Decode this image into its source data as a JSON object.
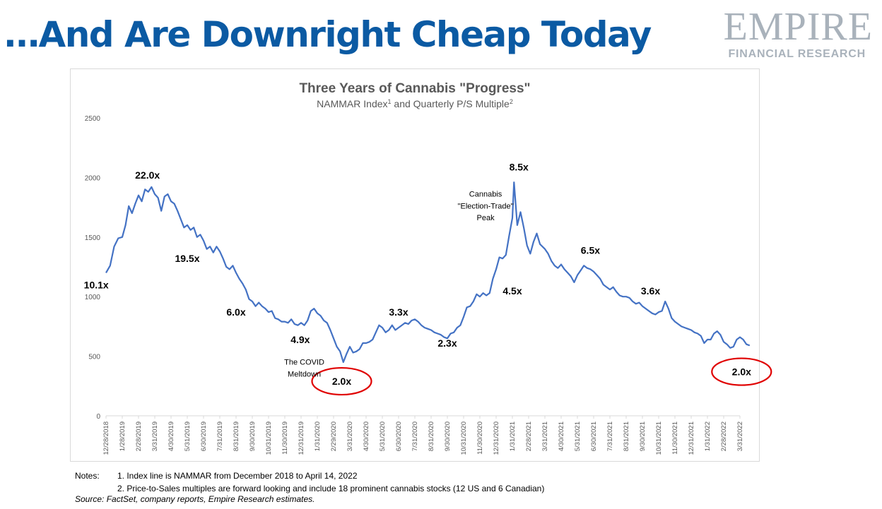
{
  "slide": {
    "title": "…And Are Downright Cheap Today"
  },
  "logo": {
    "line1": "EMPIRE",
    "line2": "FINANCIAL RESEARCH"
  },
  "chart_data": {
    "type": "line",
    "title": "Three Years of Cannabis \"Progress\"",
    "subtitle_parts": [
      "NAMMAR Index",
      "1",
      " and Quarterly P/S Multiple",
      "2"
    ],
    "ylim": [
      0,
      2500
    ],
    "yticks": [
      0,
      500,
      1000,
      1500,
      2000,
      2500
    ],
    "x_tick_labels": [
      "12/28/2018",
      "1/28/2019",
      "2/28/2019",
      "3/31/2019",
      "4/30/2019",
      "5/31/2019",
      "6/30/2019",
      "7/31/2019",
      "8/31/2019",
      "9/30/2019",
      "10/31/2019",
      "11/30/2019",
      "12/31/2019",
      "1/31/2020",
      "2/29/2020",
      "3/31/2020",
      "4/30/2020",
      "5/31/2020",
      "6/30/2020",
      "7/31/2020",
      "8/31/2020",
      "9/30/2020",
      "10/31/2020",
      "11/30/2020",
      "12/31/2020",
      "1/31/2021",
      "2/28/2021",
      "3/31/2021",
      "4/30/2021",
      "5/31/2021",
      "6/30/2021",
      "7/31/2021",
      "8/31/2021",
      "9/30/2021",
      "10/31/2021",
      "11/30/2021",
      "12/31/2021",
      "1/31/2022",
      "2/28/2022",
      "3/31/2022"
    ],
    "series": [
      {
        "color": "#4472c4",
        "points": [
          [
            0,
            1200
          ],
          [
            0.25,
            1260
          ],
          [
            0.5,
            1420
          ],
          [
            0.75,
            1490
          ],
          [
            1,
            1500
          ],
          [
            1.2,
            1600
          ],
          [
            1.4,
            1760
          ],
          [
            1.6,
            1700
          ],
          [
            1.8,
            1780
          ],
          [
            2.0,
            1850
          ],
          [
            2.2,
            1800
          ],
          [
            2.4,
            1900
          ],
          [
            2.6,
            1880
          ],
          [
            2.8,
            1920
          ],
          [
            3.0,
            1860
          ],
          [
            3.2,
            1830
          ],
          [
            3.4,
            1720
          ],
          [
            3.6,
            1840
          ],
          [
            3.8,
            1860
          ],
          [
            4.0,
            1800
          ],
          [
            4.2,
            1780
          ],
          [
            4.4,
            1720
          ],
          [
            4.6,
            1650
          ],
          [
            4.8,
            1580
          ],
          [
            5.0,
            1600
          ],
          [
            5.2,
            1560
          ],
          [
            5.4,
            1580
          ],
          [
            5.6,
            1500
          ],
          [
            5.8,
            1520
          ],
          [
            6.0,
            1470
          ],
          [
            6.2,
            1400
          ],
          [
            6.4,
            1420
          ],
          [
            6.6,
            1370
          ],
          [
            6.8,
            1420
          ],
          [
            7.0,
            1380
          ],
          [
            7.2,
            1320
          ],
          [
            7.4,
            1250
          ],
          [
            7.6,
            1230
          ],
          [
            7.8,
            1260
          ],
          [
            8.0,
            1200
          ],
          [
            8.2,
            1150
          ],
          [
            8.4,
            1110
          ],
          [
            8.6,
            1060
          ],
          [
            8.8,
            980
          ],
          [
            9.0,
            960
          ],
          [
            9.2,
            920
          ],
          [
            9.4,
            950
          ],
          [
            9.6,
            920
          ],
          [
            9.8,
            900
          ],
          [
            10.0,
            870
          ],
          [
            10.2,
            880
          ],
          [
            10.4,
            820
          ],
          [
            10.6,
            810
          ],
          [
            10.8,
            790
          ],
          [
            11.0,
            790
          ],
          [
            11.2,
            780
          ],
          [
            11.4,
            810
          ],
          [
            11.6,
            770
          ],
          [
            11.8,
            760
          ],
          [
            12.0,
            780
          ],
          [
            12.2,
            760
          ],
          [
            12.4,
            800
          ],
          [
            12.6,
            880
          ],
          [
            12.8,
            900
          ],
          [
            13.0,
            860
          ],
          [
            13.2,
            840
          ],
          [
            13.4,
            800
          ],
          [
            13.6,
            780
          ],
          [
            13.8,
            720
          ],
          [
            14.0,
            650
          ],
          [
            14.2,
            580
          ],
          [
            14.4,
            540
          ],
          [
            14.6,
            450
          ],
          [
            14.8,
            520
          ],
          [
            15.0,
            580
          ],
          [
            15.2,
            530
          ],
          [
            15.4,
            540
          ],
          [
            15.6,
            560
          ],
          [
            15.8,
            610
          ],
          [
            16.0,
            610
          ],
          [
            16.2,
            620
          ],
          [
            16.4,
            640
          ],
          [
            16.6,
            700
          ],
          [
            16.8,
            760
          ],
          [
            17.0,
            740
          ],
          [
            17.2,
            700
          ],
          [
            17.4,
            720
          ],
          [
            17.6,
            760
          ],
          [
            17.8,
            720
          ],
          [
            18.0,
            740
          ],
          [
            18.2,
            760
          ],
          [
            18.4,
            780
          ],
          [
            18.6,
            770
          ],
          [
            18.8,
            800
          ],
          [
            19.0,
            810
          ],
          [
            19.2,
            790
          ],
          [
            19.4,
            760
          ],
          [
            19.6,
            740
          ],
          [
            19.8,
            730
          ],
          [
            20.0,
            720
          ],
          [
            20.2,
            700
          ],
          [
            20.4,
            690
          ],
          [
            20.6,
            680
          ],
          [
            20.8,
            660
          ],
          [
            21.0,
            650
          ],
          [
            21.2,
            690
          ],
          [
            21.4,
            700
          ],
          [
            21.6,
            740
          ],
          [
            21.8,
            760
          ],
          [
            22.0,
            830
          ],
          [
            22.2,
            910
          ],
          [
            22.4,
            920
          ],
          [
            22.6,
            960
          ],
          [
            22.8,
            1020
          ],
          [
            23.0,
            1000
          ],
          [
            23.2,
            1030
          ],
          [
            23.4,
            1010
          ],
          [
            23.6,
            1030
          ],
          [
            23.8,
            1150
          ],
          [
            24.0,
            1230
          ],
          [
            24.2,
            1330
          ],
          [
            24.4,
            1320
          ],
          [
            24.6,
            1350
          ],
          [
            24.8,
            1510
          ],
          [
            25.0,
            1660
          ],
          [
            25.1,
            1960
          ],
          [
            25.3,
            1600
          ],
          [
            25.5,
            1710
          ],
          [
            25.7,
            1580
          ],
          [
            25.9,
            1430
          ],
          [
            26.1,
            1360
          ],
          [
            26.3,
            1460
          ],
          [
            26.5,
            1530
          ],
          [
            26.7,
            1440
          ],
          [
            27.0,
            1400
          ],
          [
            27.2,
            1360
          ],
          [
            27.4,
            1300
          ],
          [
            27.6,
            1260
          ],
          [
            27.8,
            1240
          ],
          [
            28.0,
            1270
          ],
          [
            28.2,
            1230
          ],
          [
            28.4,
            1200
          ],
          [
            28.6,
            1170
          ],
          [
            28.8,
            1120
          ],
          [
            29.0,
            1180
          ],
          [
            29.2,
            1220
          ],
          [
            29.4,
            1260
          ],
          [
            29.6,
            1240
          ],
          [
            29.8,
            1230
          ],
          [
            30.0,
            1210
          ],
          [
            30.2,
            1180
          ],
          [
            30.4,
            1150
          ],
          [
            30.6,
            1100
          ],
          [
            30.8,
            1080
          ],
          [
            31.0,
            1060
          ],
          [
            31.2,
            1080
          ],
          [
            31.4,
            1040
          ],
          [
            31.6,
            1010
          ],
          [
            31.8,
            1000
          ],
          [
            32.0,
            1000
          ],
          [
            32.2,
            990
          ],
          [
            32.4,
            960
          ],
          [
            32.6,
            940
          ],
          [
            32.8,
            950
          ],
          [
            33.0,
            920
          ],
          [
            33.2,
            900
          ],
          [
            33.4,
            880
          ],
          [
            33.6,
            860
          ],
          [
            33.8,
            850
          ],
          [
            34.0,
            870
          ],
          [
            34.2,
            880
          ],
          [
            34.4,
            960
          ],
          [
            34.6,
            900
          ],
          [
            34.8,
            820
          ],
          [
            35.0,
            790
          ],
          [
            35.2,
            770
          ],
          [
            35.4,
            750
          ],
          [
            35.6,
            740
          ],
          [
            35.8,
            730
          ],
          [
            36.0,
            720
          ],
          [
            36.2,
            700
          ],
          [
            36.4,
            690
          ],
          [
            36.6,
            670
          ],
          [
            36.8,
            610
          ],
          [
            37.0,
            640
          ],
          [
            37.2,
            640
          ],
          [
            37.4,
            690
          ],
          [
            37.6,
            710
          ],
          [
            37.8,
            680
          ],
          [
            38.0,
            620
          ],
          [
            38.2,
            600
          ],
          [
            38.4,
            570
          ],
          [
            38.6,
            580
          ],
          [
            38.8,
            640
          ],
          [
            39.0,
            660
          ],
          [
            39.2,
            640
          ],
          [
            39.4,
            600
          ],
          [
            39.6,
            590
          ]
        ]
      }
    ],
    "annotations": [
      {
        "text": "10.1x",
        "x": -0.6,
        "y": 1070,
        "bold": true,
        "size": 14
      },
      {
        "text": "22.0x",
        "x": 2.55,
        "y": 1990,
        "bold": true,
        "size": 14
      },
      {
        "text": "19.5x",
        "x": 5.0,
        "y": 1290,
        "bold": true,
        "size": 14
      },
      {
        "text": "6.0x",
        "x": 8.0,
        "y": 840,
        "bold": true,
        "size": 14
      },
      {
        "text": "4.9x",
        "x": 11.95,
        "y": 610,
        "bold": true,
        "size": 14
      },
      {
        "text": "3.3x",
        "x": 18.0,
        "y": 840,
        "bold": true,
        "size": 14
      },
      {
        "text": "2.3x",
        "x": 21.0,
        "y": 580,
        "bold": true,
        "size": 14
      },
      {
        "text": "8.5x",
        "x": 25.4,
        "y": 2060,
        "bold": true,
        "size": 14
      },
      {
        "text": "4.5x",
        "x": 25.0,
        "y": 1020,
        "bold": true,
        "size": 14
      },
      {
        "text": "6.5x",
        "x": 29.8,
        "y": 1360,
        "bold": true,
        "size": 14
      },
      {
        "text": "3.6x",
        "x": 33.5,
        "y": 1020,
        "bold": true,
        "size": 14
      },
      {
        "text": "2.0x",
        "x": 14.5,
        "y": 260,
        "bold": true,
        "size": 14
      },
      {
        "text": "2.0x",
        "x": 39.1,
        "y": 340,
        "bold": true,
        "size": 14
      },
      {
        "text": "The COVID",
        "x": 12.2,
        "y": 430,
        "bold": false,
        "size": 11
      },
      {
        "text": "Meltdown",
        "x": 12.2,
        "y": 330,
        "bold": false,
        "size": 11
      },
      {
        "text": "Cannabis",
        "x": 23.35,
        "y": 1840,
        "bold": false,
        "size": 11
      },
      {
        "text": "\"Election-Trade\"",
        "x": 23.35,
        "y": 1740,
        "bold": false,
        "size": 11
      },
      {
        "text": "Peak",
        "x": 23.35,
        "y": 1640,
        "bold": false,
        "size": 11
      }
    ],
    "highlights": [
      {
        "x": 14.5,
        "y": 290,
        "color": "#e00000"
      },
      {
        "x": 39.1,
        "y": 370,
        "color": "#e00000"
      }
    ],
    "grid": false,
    "legend": "none"
  },
  "notes": {
    "label": "Notes:",
    "line1": "1. Index line is NAMMAR from December 2018 to April 14, 2022",
    "line2": "2. Price-to-Sales multiples are forward looking and include 18 prominent cannabis stocks (12 US and 6 Canadian)"
  },
  "source": "Source: FactSet, company reports, Empire Research estimates."
}
